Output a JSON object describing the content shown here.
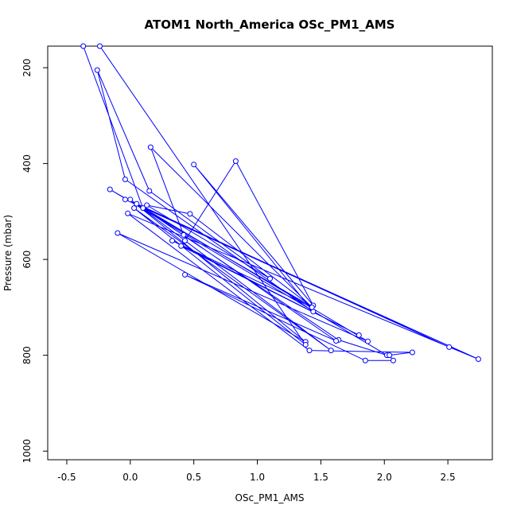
{
  "chart_data": {
    "type": "line",
    "title": "ATOM1 North_America OSc_PM1_AMS",
    "xlabel": "OSc_PM1_AMS",
    "ylabel": "Pressure (mbar)",
    "xlim": [
      -0.65,
      2.85
    ],
    "ylim": [
      1018,
      155
    ],
    "y_reversed": true,
    "grid": false,
    "legend": "none",
    "series_color": "#0000ff",
    "x_ticks": [
      {
        "value": -0.5,
        "label": "-0.5"
      },
      {
        "value": 0.0,
        "label": "0.0"
      },
      {
        "value": 0.5,
        "label": "0.5"
      },
      {
        "value": 1.0,
        "label": "1.0"
      },
      {
        "value": 1.5,
        "label": "1.5"
      },
      {
        "value": 2.0,
        "label": "2.0"
      },
      {
        "value": 2.5,
        "label": "2.5"
      }
    ],
    "y_ticks": [
      {
        "value": 200,
        "label": "200"
      },
      {
        "value": 400,
        "label": "400"
      },
      {
        "value": 600,
        "label": "600"
      },
      {
        "value": 800,
        "label": "800"
      },
      {
        "value": 1000,
        "label": "1000"
      }
    ],
    "series": [
      {
        "points": [
          [
            -0.37,
            155
          ],
          [
            0.1,
            493
          ],
          [
            1.64,
            768
          ],
          [
            2.02,
            800
          ],
          [
            -0.16,
            454
          ],
          [
            1.43,
            699
          ],
          [
            0.47,
            505
          ],
          [
            0.13,
            487
          ],
          [
            1.1,
            640
          ],
          [
            0.15,
            457
          ],
          [
            -0.26,
            205
          ],
          [
            -0.04,
            433
          ],
          [
            1.44,
            709
          ],
          [
            0.5,
            402
          ],
          [
            1.44,
            696
          ],
          [
            0.83,
            395
          ],
          [
            0.43,
            561
          ],
          [
            0.4,
            572
          ],
          [
            1.8,
            758
          ],
          [
            0.33,
            561
          ],
          [
            1.43,
            700
          ],
          [
            0.16,
            366
          ],
          [
            0.42,
            549
          ],
          [
            1.62,
            770
          ],
          [
            0.43,
            632
          ],
          [
            1.85,
            811
          ],
          [
            2.07,
            811
          ],
          [
            2.04,
            800
          ],
          [
            2.22,
            794
          ],
          [
            1.41,
            790
          ],
          [
            -0.02,
            504
          ],
          [
            2.74,
            808
          ],
          [
            -0.04,
            475
          ],
          [
            2.51,
            783
          ],
          [
            0.05,
            484
          ],
          [
            1.87,
            771
          ],
          [
            -0.1,
            545
          ],
          [
            1.38,
            772
          ],
          [
            0.0,
            475
          ],
          [
            1.58,
            790
          ],
          [
            0.03,
            493
          ],
          [
            1.38,
            778
          ],
          [
            -0.24,
            155
          ]
        ]
      }
    ]
  }
}
